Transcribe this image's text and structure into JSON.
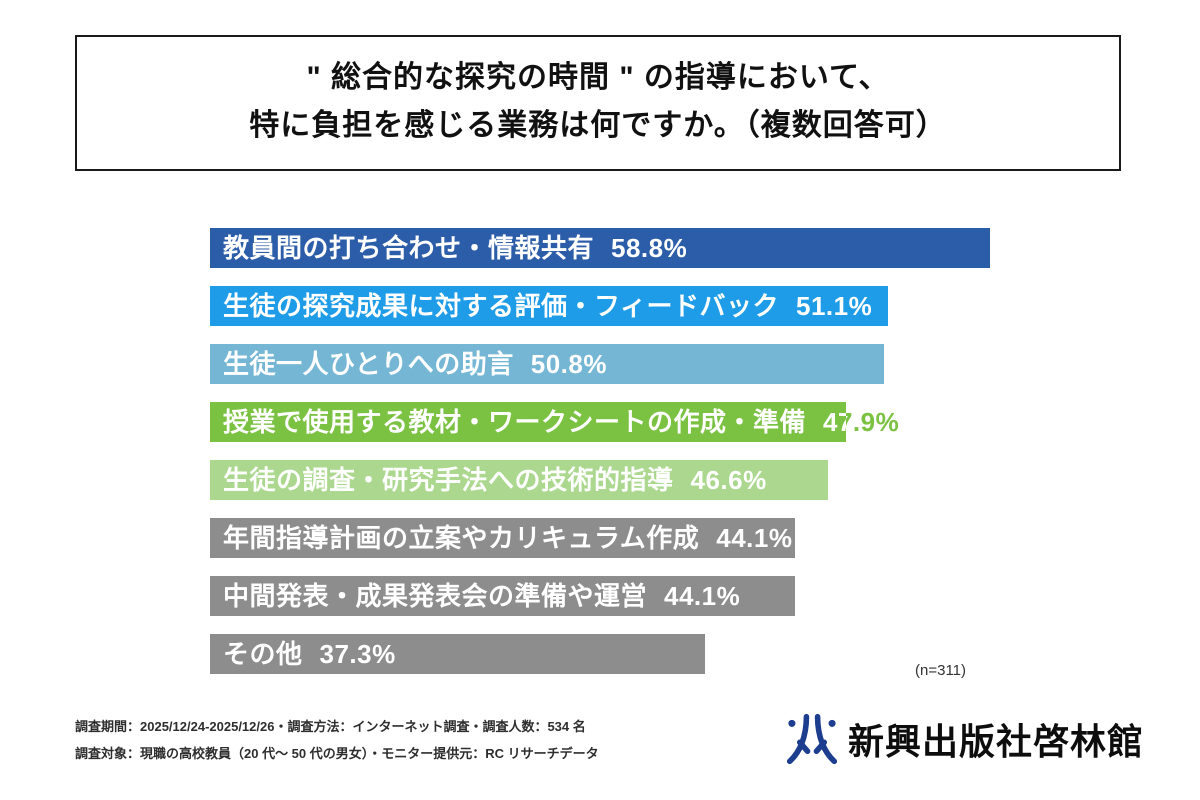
{
  "title": {
    "line1": "\" 総合的な探究の時間 \" の指導において、",
    "line2": "特に負担を感じる業務は何ですか。（複数回答可）"
  },
  "chart_data": {
    "type": "bar",
    "orientation": "horizontal",
    "title": "\" 総合的な探究の時間 \" の指導において、特に負担を感じる業務は何ですか。（複数回答可）",
    "categories": [
      "教員間の打ち合わせ・情報共有",
      "生徒の探究成果に対する評価・フィードバック",
      "生徒一人ひとりへの助言",
      "授業で使用する教材・ワークシートの作成・準備",
      "生徒の調査・研究手法への技術的指導",
      "年間指導計画の立案やカリキュラム作成",
      "中間発表・成果発表会の準備や運営",
      "その他"
    ],
    "values": [
      58.8,
      51.1,
      50.8,
      47.9,
      46.6,
      44.1,
      44.1,
      37.3
    ],
    "value_labels": [
      "58.8%",
      "51.1%",
      "50.8%",
      "47.9%",
      "46.6%",
      "44.1%",
      "44.1%",
      "37.3%"
    ],
    "bar_colors": [
      "#2c5da9",
      "#1e9ce8",
      "#74b6d4",
      "#7bc142",
      "#abd88e",
      "#8d8d8d",
      "#8d8d8d",
      "#8d8d8d"
    ],
    "xlim": [
      0,
      60
    ],
    "legend": "none",
    "grid": false,
    "sample_note": "(n=311)"
  },
  "footer": {
    "line1": "調査期間：2025/12/24-2025/12/26・調査方法：インターネット調査・調査人数：534 名",
    "line2": "調査対象：現職の高校教員（20 代〜 50 代の男女）・モニター提供元：RC リサーチデータ",
    "logo_text": "新興出版社啓林館"
  },
  "colors": {
    "logo_blue": "#1d3e8f",
    "title_border": "#1a1a1a",
    "bar_text": "#ffffff"
  }
}
